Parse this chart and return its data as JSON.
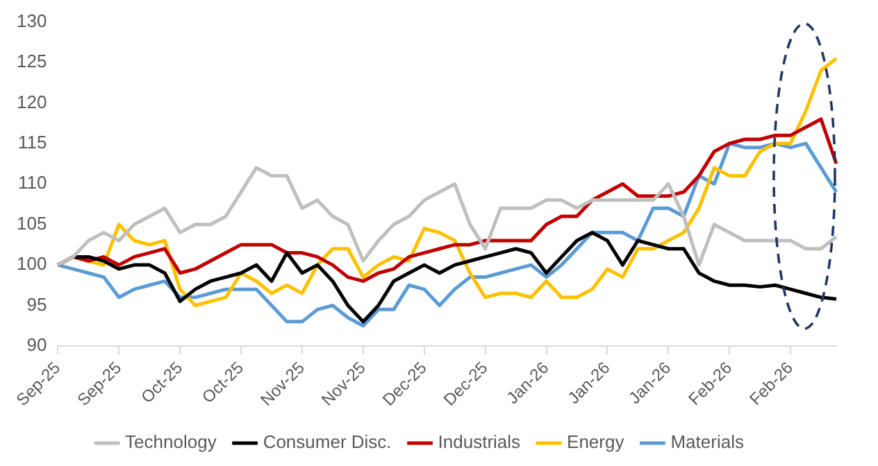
{
  "chart_data": {
    "type": "line",
    "categories": [
      "Sep-25",
      null,
      null,
      null,
      "Sep-25",
      null,
      null,
      null,
      "Oct-25",
      null,
      null,
      null,
      "Oct-25",
      null,
      null,
      null,
      "Nov-25",
      null,
      null,
      null,
      "Nov-25",
      null,
      null,
      null,
      "Dec-25",
      null,
      null,
      null,
      "Dec-25",
      null,
      null,
      null,
      "Jan-26",
      null,
      null,
      null,
      "Jan-26",
      null,
      null,
      null,
      "Jan-26",
      null,
      null,
      null,
      "Feb-26",
      null,
      null,
      null,
      "Feb-26",
      null,
      null,
      null
    ],
    "series": [
      {
        "name": "Technology",
        "color": "#bfbfbf",
        "values": [
          100,
          101,
          103,
          104,
          103,
          105,
          106,
          107,
          104,
          105,
          105,
          106,
          109,
          112,
          111,
          111,
          107,
          108,
          106,
          105,
          100.5,
          103,
          105,
          106,
          108,
          109,
          110,
          105,
          102,
          107,
          107,
          107,
          108,
          108,
          107,
          108,
          108,
          108,
          108,
          108,
          110,
          106,
          100,
          105,
          104,
          103,
          103,
          103,
          103,
          102,
          102,
          103.5
        ]
      },
      {
        "name": "Consumer Disc.",
        "color": "#000000",
        "values": [
          100,
          101,
          101,
          100.5,
          99.5,
          100,
          100,
          99,
          95.5,
          97,
          98,
          98.5,
          99,
          100,
          98,
          101.5,
          99,
          100,
          98,
          95,
          93,
          95,
          98,
          99,
          100,
          99,
          100,
          100.5,
          101,
          101.5,
          102,
          101.5,
          99,
          101,
          103,
          104,
          103,
          100,
          103,
          102.5,
          102,
          102,
          99,
          98,
          97.5,
          97.5,
          97.3,
          97.5,
          97,
          96.5,
          96,
          95.8
        ]
      },
      {
        "name": "Industrials",
        "color": "#c00000",
        "values": [
          100,
          101,
          100.5,
          101,
          100,
          101,
          101.5,
          102,
          99,
          99.5,
          100.5,
          101.5,
          102.5,
          102.5,
          102.5,
          101.5,
          101.5,
          101,
          100,
          98.5,
          98,
          99,
          99.5,
          101,
          101.5,
          102,
          102.5,
          102.5,
          103,
          103,
          103,
          103,
          105,
          106,
          106,
          108,
          109,
          110,
          108.5,
          108.5,
          108.5,
          109,
          111,
          114,
          115,
          115.5,
          115.5,
          116,
          116,
          117,
          118,
          112.5
        ]
      },
      {
        "name": "Energy",
        "color": "#ffc000",
        "values": [
          100,
          101,
          100.5,
          100,
          105,
          103,
          102.5,
          103,
          97,
          95,
          95.5,
          96,
          99,
          98,
          96.5,
          97.5,
          96.5,
          100,
          102,
          102,
          98.5,
          100,
          101,
          100.5,
          104.5,
          104,
          103,
          99,
          96,
          96.5,
          96.5,
          96,
          98,
          96,
          96,
          97,
          99.5,
          98.5,
          102,
          102,
          103,
          104,
          107,
          112,
          111,
          111,
          114,
          115,
          115,
          119,
          124,
          125.5
        ]
      },
      {
        "name": "Materials",
        "color": "#5b9bd5",
        "values": [
          100,
          99.5,
          99,
          98.5,
          96,
          97,
          97.5,
          98,
          96,
          96,
          96.5,
          97,
          97,
          97,
          95,
          93,
          93,
          94.5,
          95,
          93.5,
          92.5,
          94.5,
          94.5,
          97.5,
          97,
          95,
          97,
          98.5,
          98.5,
          99,
          99.5,
          100,
          98.5,
          100,
          102,
          104,
          104,
          104,
          103,
          107,
          107,
          106,
          111,
          110,
          115,
          114.5,
          114.5,
          115,
          114.5,
          115,
          112,
          109
        ]
      }
    ],
    "ylim": [
      90,
      130
    ],
    "yticks": [
      90,
      95,
      100,
      105,
      110,
      115,
      120,
      125,
      130
    ],
    "grid": false,
    "legend": "bottom",
    "marker": "none",
    "line_style": "solid"
  }
}
